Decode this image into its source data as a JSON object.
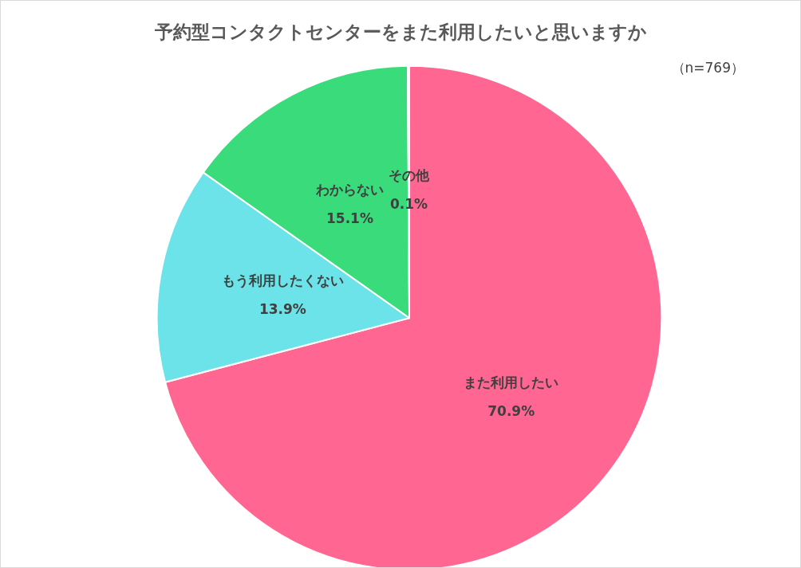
{
  "chart_data": {
    "type": "pie",
    "title": "予約型コンタクトセンターをまた利用したいと思いますか",
    "annotations": [
      "（n=769）"
    ],
    "categories": [
      "また利用したい",
      "もう利用したくない",
      "わからない",
      "その他"
    ],
    "values": [
      70.9,
      13.9,
      15.1,
      0.1
    ],
    "colors": [
      "#ff6692",
      "#6be3e8",
      "#3adb7a",
      "#e6e6e6"
    ],
    "value_labels": [
      "70.9%",
      "13.9%",
      "15.1%",
      "0.1%"
    ],
    "legend": false
  }
}
